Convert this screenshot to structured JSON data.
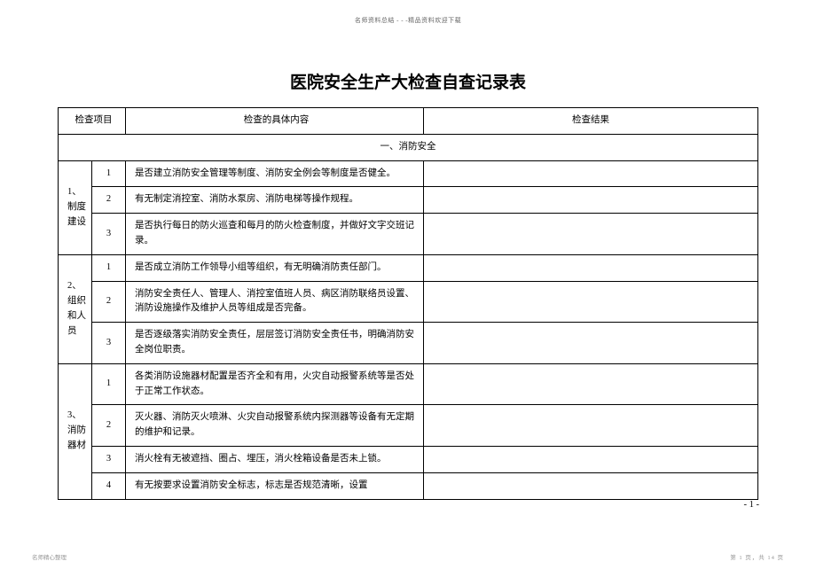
{
  "header_text": "名师资料总结 - - -精品资料欢迎下载",
  "title": "医院安全生产大检查自查记录表",
  "columns": {
    "category": "检查项目",
    "content": "检查的具体内容",
    "result": "检查结果"
  },
  "section_1_title": "一、消防安全",
  "groups": [
    {
      "category": "1、制度建设",
      "rows": [
        {
          "num": "1",
          "content": "是否建立消防安全管理等制度、消防安全例会等制度是否健全。"
        },
        {
          "num": "2",
          "content": "有无制定消控室、消防水泵房、消防电梯等操作规程。"
        },
        {
          "num": "3",
          "content": "是否执行每日的防火巡查和每月的防火检查制度，并做好文字交班记录。"
        }
      ]
    },
    {
      "category": "2、组织和人员",
      "rows": [
        {
          "num": "1",
          "content": "是否成立消防工作领导小组等组织，有无明确消防责任部门。"
        },
        {
          "num": "2",
          "content": "消防安全责任人、管理人、消控室值班人员、病区消防联络员设置、消防设施操作及维护人员等组成是否完备。"
        },
        {
          "num": "3",
          "content": "是否逐级落实消防安全责任，层层签订消防安全责任书，明确消防安全岗位职责。"
        }
      ]
    },
    {
      "category": "3、消防器材",
      "rows": [
        {
          "num": "1",
          "content": "各类消防设施器材配置是否齐全和有用，火灾自动报警系统等是否处于正常工作状态。"
        },
        {
          "num": "2",
          "content": "灭火器、消防灭火喷淋、火灾自动报警系统内探测器等设备有无定期的维护和记录。"
        },
        {
          "num": "3",
          "content": "消火栓有无被遮挡、圈占、埋压，消火栓箱设备是否未上锁。"
        },
        {
          "num": "4",
          "content": "有无按要求设置消防安全标志，标志是否规范清晰，设置"
        }
      ]
    }
  ],
  "page_num": "- 1 -",
  "footer_left": "名师精心整理",
  "footer_right": "第 1 页，共 14 页"
}
